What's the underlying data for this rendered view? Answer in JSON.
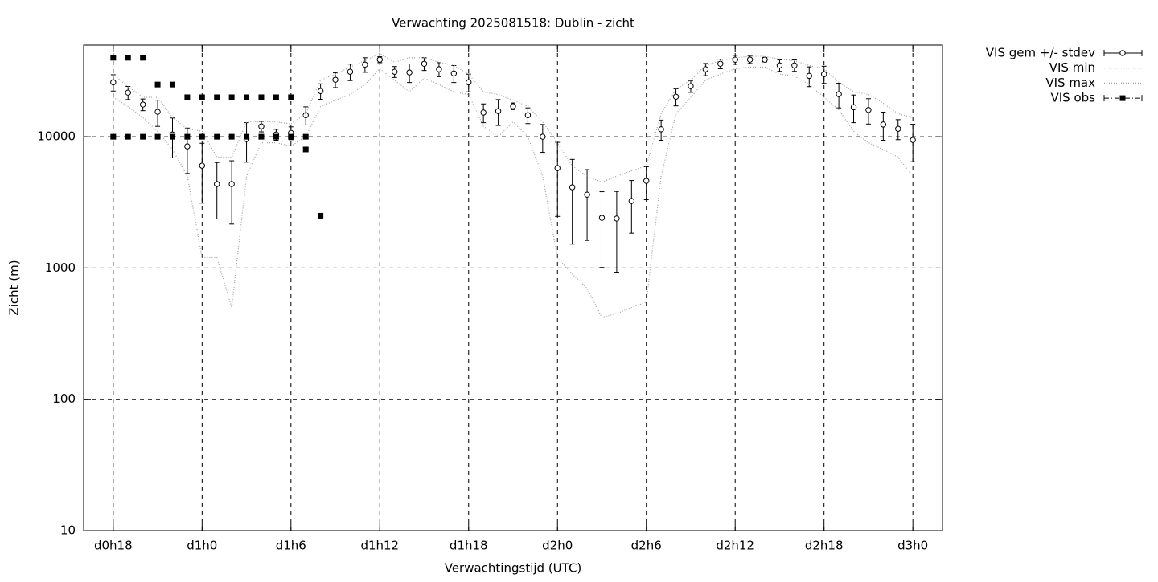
{
  "chart_data": {
    "type": "line",
    "title": "Verwachting 2025081518: Dublin - zicht",
    "x_label": "Verwachtingstijd (UTC)",
    "y_label": "Zicht (m)",
    "xlim": [
      16,
      74
    ],
    "xticks": [
      {
        "value": 18,
        "label": "d0h18"
      },
      {
        "value": 24,
        "label": "d1h0"
      },
      {
        "value": 30,
        "label": "d1h6"
      },
      {
        "value": 36,
        "label": "d1h12"
      },
      {
        "value": 42,
        "label": "d1h18"
      },
      {
        "value": 48,
        "label": "d2h0"
      },
      {
        "value": 54,
        "label": "d2h6"
      },
      {
        "value": 60,
        "label": "d2h12"
      },
      {
        "value": 66,
        "label": "d2h18"
      },
      {
        "value": 72,
        "label": "d3h0"
      }
    ],
    "ylim": [
      10,
      50000
    ],
    "yticks": [
      10,
      100,
      1000,
      10000
    ],
    "log_y": true,
    "grid": true,
    "legend": "outside-right",
    "series": [
      {
        "name": "VIS gem +/- stdev",
        "style": "errorbars",
        "color": "#000000",
        "x": [
          18,
          19,
          20,
          21,
          22,
          23,
          24,
          25,
          26,
          27,
          28,
          29,
          30,
          31,
          32,
          33,
          34,
          35,
          36,
          37,
          38,
          39,
          40,
          41,
          42,
          43,
          44,
          45,
          46,
          47,
          48,
          49,
          50,
          51,
          52,
          53,
          54,
          55,
          56,
          57,
          58,
          59,
          60,
          61,
          62,
          63,
          64,
          65,
          66,
          67,
          68,
          69,
          70,
          71,
          72
        ],
        "values": [
          26000,
          21700,
          17600,
          15500,
          10400,
          8450,
          6020,
          4360,
          4360,
          9600,
          12000,
          10400,
          10700,
          14600,
          22300,
          27200,
          31300,
          35500,
          38700,
          31300,
          30900,
          36000,
          32700,
          30400,
          26000,
          15300,
          15700,
          17100,
          14600,
          10000,
          5770,
          4120,
          3620,
          2410,
          2380,
          3240,
          4610,
          11400,
          20200,
          24300,
          32700,
          36000,
          38700,
          38700,
          38700,
          35000,
          35000,
          29100,
          30000,
          21100,
          16800,
          16000,
          12400,
          11500,
          9450
        ],
        "errors": [
          3700,
          2500,
          1800,
          3500,
          3500,
          3200,
          2900,
          2000,
          2200,
          3200,
          1100,
          1000,
          1200,
          2300,
          3000,
          3500,
          4500,
          4500,
          2000,
          3000,
          5000,
          4000,
          4000,
          4500,
          4000,
          2500,
          3500,
          1000,
          2000,
          2400,
          3300,
          2600,
          2000,
          1400,
          1450,
          1400,
          1300,
          2000,
          3000,
          2500,
          3500,
          3000,
          3000,
          2500,
          1500,
          3500,
          3500,
          5000,
          4500,
          4500,
          4000,
          3500,
          3000,
          2000,
          3000
        ]
      },
      {
        "name": "VIS min",
        "style": "dotted",
        "color": "#a0a0a0",
        "x": [
          18,
          19,
          20,
          21,
          22,
          23,
          24,
          25,
          26,
          27,
          28,
          29,
          30,
          31,
          32,
          33,
          34,
          35,
          36,
          37,
          38,
          39,
          40,
          41,
          42,
          43,
          44,
          45,
          46,
          47,
          48,
          49,
          50,
          51,
          52,
          53,
          54,
          55,
          56,
          57,
          58,
          59,
          60,
          61,
          62,
          63,
          64,
          65,
          66,
          67,
          68,
          69,
          70,
          71,
          72
        ],
        "values": [
          20000,
          17000,
          14000,
          11000,
          8000,
          5000,
          1200,
          1200,
          500,
          5000,
          9000,
          9000,
          8500,
          10000,
          17000,
          19000,
          21000,
          25000,
          33000,
          27000,
          22000,
          28000,
          25000,
          22000,
          21000,
          12000,
          10000,
          13000,
          10000,
          5000,
          1200,
          900,
          700,
          420,
          450,
          500,
          550,
          5000,
          15000,
          20000,
          27000,
          30000,
          33000,
          34000,
          34000,
          30000,
          29000,
          25000,
          20000,
          16000,
          11000,
          9000,
          8000,
          7000,
          5000
        ]
      },
      {
        "name": "VIS max",
        "style": "dotted",
        "color": "#a0a0a0",
        "x": [
          18,
          19,
          20,
          21,
          22,
          23,
          24,
          25,
          26,
          27,
          28,
          29,
          30,
          31,
          32,
          33,
          34,
          35,
          36,
          37,
          38,
          39,
          40,
          41,
          42,
          43,
          44,
          45,
          46,
          47,
          48,
          49,
          50,
          51,
          52,
          53,
          54,
          55,
          56,
          57,
          58,
          59,
          60,
          61,
          62,
          63,
          64,
          65,
          66,
          67,
          68,
          69,
          70,
          71,
          72
        ],
        "values": [
          30000,
          24000,
          20000,
          20000,
          14000,
          11500,
          11000,
          7000,
          7000,
          13000,
          13000,
          13000,
          12500,
          15000,
          27000,
          30000,
          34000,
          38000,
          43000,
          37000,
          40000,
          40000,
          37000,
          35000,
          30000,
          22000,
          21000,
          19000,
          17000,
          13000,
          9000,
          6000,
          5000,
          4500,
          5000,
          5500,
          6000,
          15000,
          23000,
          27000,
          35000,
          38000,
          40000,
          41000,
          41000,
          39000,
          38000,
          35000,
          33000,
          26000,
          22000,
          21000,
          18000,
          15000,
          14000
        ]
      },
      {
        "name": "VIS obs",
        "style": "squares",
        "color": "#000000",
        "x": [
          18,
          18,
          19,
          19,
          20,
          20,
          21,
          21,
          22,
          22,
          23,
          23,
          24,
          24,
          25,
          25,
          26,
          26,
          27,
          27,
          28,
          28,
          29,
          29,
          30,
          30,
          31,
          31,
          32
        ],
        "values": [
          40000,
          10000,
          40000,
          10000,
          40000,
          10000,
          25000,
          10000,
          25000,
          10000,
          20000,
          10000,
          20000,
          10000,
          20000,
          10000,
          20000,
          10000,
          20000,
          10000,
          20000,
          10000,
          20000,
          10000,
          20000,
          10000,
          10000,
          8000,
          2500
        ]
      }
    ]
  }
}
